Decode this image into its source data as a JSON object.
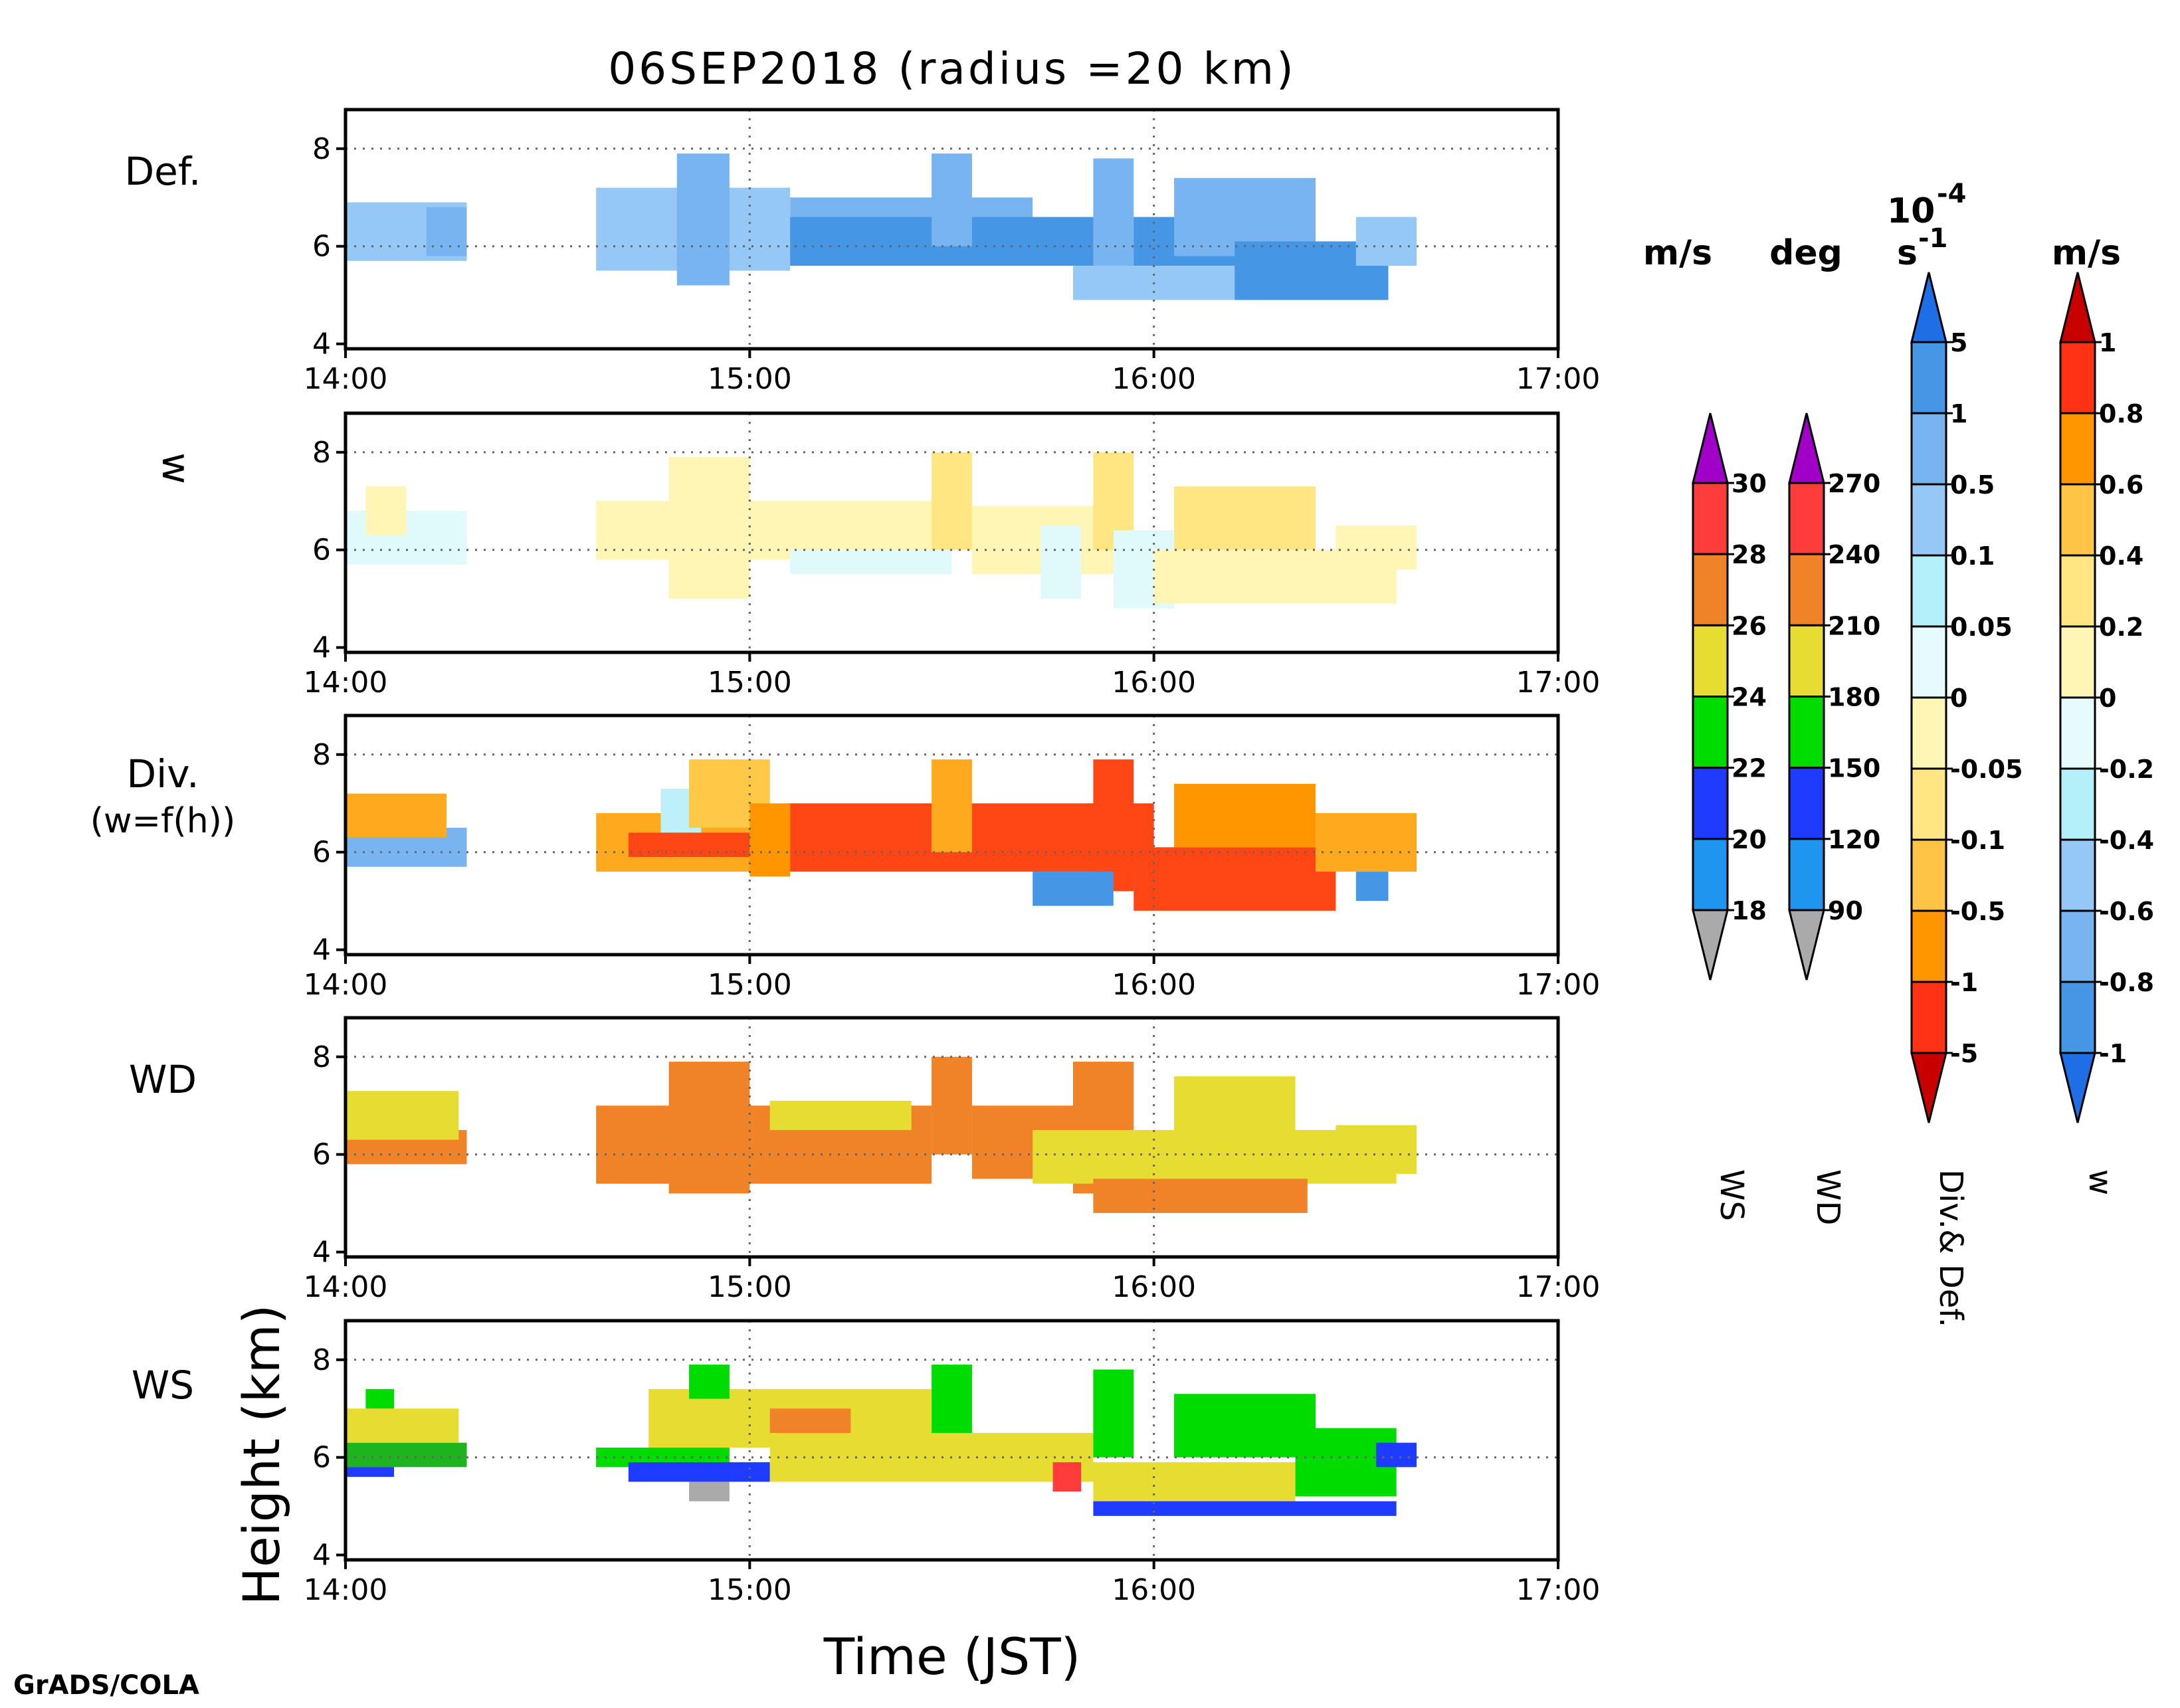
{
  "figure": {
    "title": "06SEP2018 (radius =20 km)",
    "xlabel": "Time (JST)",
    "ylabel": "Height (km)",
    "credit": "GrADS/COLA"
  },
  "chart_data": {
    "type": "heatmap",
    "x_ticks": [
      "14:00",
      "15:00",
      "16:00",
      "17:00"
    ],
    "x_range_hours": [
      14,
      17
    ],
    "y_ticks": [
      4,
      6,
      8
    ],
    "y_range_km": [
      3.9,
      8.8
    ],
    "grid": "dotted at 15:00, 16:00 and 6, 8 km",
    "panels": [
      {
        "label": "Def.",
        "scale": "divdef",
        "blocks": [
          {
            "t0": 14.0,
            "t1": 14.3,
            "z0": 5.7,
            "z1": 6.9,
            "color": "#96c8f5"
          },
          {
            "t0": 14.2,
            "t1": 14.3,
            "z0": 5.8,
            "z1": 6.8,
            "color": "#78b4f0"
          },
          {
            "t0": 14.62,
            "t1": 15.1,
            "z0": 5.5,
            "z1": 7.2,
            "color": "#96c8f5"
          },
          {
            "t0": 14.82,
            "t1": 14.95,
            "z0": 5.2,
            "z1": 7.9,
            "color": "#78b4f0"
          },
          {
            "t0": 15.1,
            "t1": 15.7,
            "z0": 5.8,
            "z1": 7.0,
            "color": "#78b4f0"
          },
          {
            "t0": 15.1,
            "t1": 16.3,
            "z0": 5.6,
            "z1": 6.6,
            "color": "#4696e6"
          },
          {
            "t0": 15.45,
            "t1": 15.55,
            "z0": 6.0,
            "z1": 7.9,
            "color": "#78b4f0"
          },
          {
            "t0": 15.85,
            "t1": 15.95,
            "z0": 5.5,
            "z1": 7.8,
            "color": "#78b4f0"
          },
          {
            "t0": 16.05,
            "t1": 16.4,
            "z0": 5.8,
            "z1": 7.4,
            "color": "#78b4f0"
          },
          {
            "t0": 15.8,
            "t1": 16.25,
            "z0": 4.9,
            "z1": 5.6,
            "color": "#96c8f5"
          },
          {
            "t0": 16.2,
            "t1": 16.58,
            "z0": 4.9,
            "z1": 6.1,
            "color": "#4696e6"
          },
          {
            "t0": 16.5,
            "t1": 16.65,
            "z0": 5.6,
            "z1": 6.6,
            "color": "#96c8f5"
          }
        ]
      },
      {
        "label": "w",
        "scale": "w",
        "blocks": [
          {
            "t0": 14.0,
            "t1": 14.3,
            "z0": 5.7,
            "z1": 6.8,
            "color": "#e0fafc"
          },
          {
            "t0": 14.05,
            "t1": 14.15,
            "z0": 6.3,
            "z1": 7.3,
            "color": "#fff5b4"
          },
          {
            "t0": 14.62,
            "t1": 15.45,
            "z0": 5.8,
            "z1": 7.0,
            "color": "#fff5b4"
          },
          {
            "t0": 14.8,
            "t1": 15.0,
            "z0": 5.0,
            "z1": 7.9,
            "color": "#fff5b4"
          },
          {
            "t0": 15.1,
            "t1": 15.5,
            "z0": 5.5,
            "z1": 6.0,
            "color": "#e0fafc"
          },
          {
            "t0": 15.45,
            "t1": 15.55,
            "z0": 6.0,
            "z1": 8.0,
            "color": "#ffe682"
          },
          {
            "t0": 15.55,
            "t1": 15.9,
            "z0": 5.5,
            "z1": 6.9,
            "color": "#fff5b4"
          },
          {
            "t0": 15.72,
            "t1": 15.82,
            "z0": 5.0,
            "z1": 6.5,
            "color": "#e0fafc"
          },
          {
            "t0": 15.85,
            "t1": 15.95,
            "z0": 6.0,
            "z1": 8.0,
            "color": "#ffe682"
          },
          {
            "t0": 15.9,
            "t1": 16.05,
            "z0": 4.8,
            "z1": 6.4,
            "color": "#e0fafc"
          },
          {
            "t0": 16.05,
            "t1": 16.4,
            "z0": 6.0,
            "z1": 7.3,
            "color": "#ffe682"
          },
          {
            "t0": 16.0,
            "t1": 16.6,
            "z0": 4.9,
            "z1": 6.0,
            "color": "#fff5b4"
          },
          {
            "t0": 16.45,
            "t1": 16.65,
            "z0": 5.6,
            "z1": 6.5,
            "color": "#fff5b4"
          }
        ]
      },
      {
        "label": "Div.",
        "sublabel": "(w=f(h))",
        "scale": "divdef",
        "blocks": [
          {
            "t0": 14.0,
            "t1": 14.3,
            "z0": 5.7,
            "z1": 6.5,
            "color": "#78b4f0"
          },
          {
            "t0": 14.0,
            "t1": 14.25,
            "z0": 6.3,
            "z1": 7.2,
            "color": "#ffaa1e"
          },
          {
            "t0": 14.62,
            "t1": 15.1,
            "z0": 5.6,
            "z1": 6.8,
            "color": "#ffaa1e"
          },
          {
            "t0": 14.78,
            "t1": 14.88,
            "z0": 6.2,
            "z1": 7.3,
            "color": "#bef0fa"
          },
          {
            "t0": 14.85,
            "t1": 15.05,
            "z0": 6.5,
            "z1": 7.9,
            "color": "#ffc846"
          },
          {
            "t0": 14.7,
            "t1": 15.0,
            "z0": 5.9,
            "z1": 6.4,
            "color": "#ff4614"
          },
          {
            "t0": 15.0,
            "t1": 15.1,
            "z0": 5.5,
            "z1": 7.0,
            "color": "#ff9600"
          },
          {
            "t0": 15.1,
            "t1": 16.0,
            "z0": 5.6,
            "z1": 7.0,
            "color": "#ff4614"
          },
          {
            "t0": 15.45,
            "t1": 15.55,
            "z0": 6.0,
            "z1": 7.9,
            "color": "#ffaa1e"
          },
          {
            "t0": 15.85,
            "t1": 15.95,
            "z0": 5.2,
            "z1": 7.9,
            "color": "#ff4614"
          },
          {
            "t0": 15.7,
            "t1": 15.9,
            "z0": 4.9,
            "z1": 5.6,
            "color": "#4696e6"
          },
          {
            "t0": 15.95,
            "t1": 16.45,
            "z0": 4.8,
            "z1": 6.1,
            "color": "#ff4614"
          },
          {
            "t0": 16.05,
            "t1": 16.4,
            "z0": 6.1,
            "z1": 7.4,
            "color": "#ff9600"
          },
          {
            "t0": 16.4,
            "t1": 16.65,
            "z0": 5.6,
            "z1": 6.8,
            "color": "#ffaa1e"
          },
          {
            "t0": 16.5,
            "t1": 16.58,
            "z0": 5.0,
            "z1": 5.6,
            "color": "#4696e6"
          }
        ]
      },
      {
        "label": "WD",
        "scale": "ws_wd",
        "blocks": [
          {
            "t0": 14.0,
            "t1": 14.3,
            "z0": 5.8,
            "z1": 6.5,
            "color": "#f08228"
          },
          {
            "t0": 14.0,
            "t1": 14.28,
            "z0": 6.3,
            "z1": 7.3,
            "color": "#e6dc32"
          },
          {
            "t0": 14.62,
            "t1": 15.45,
            "z0": 5.4,
            "z1": 7.0,
            "color": "#f08228"
          },
          {
            "t0": 14.8,
            "t1": 15.0,
            "z0": 5.2,
            "z1": 7.9,
            "color": "#f08228"
          },
          {
            "t0": 15.05,
            "t1": 15.4,
            "z0": 6.5,
            "z1": 7.1,
            "color": "#e6dc32"
          },
          {
            "t0": 15.45,
            "t1": 15.55,
            "z0": 6.0,
            "z1": 8.0,
            "color": "#f08228"
          },
          {
            "t0": 15.55,
            "t1": 15.8,
            "z0": 5.5,
            "z1": 7.0,
            "color": "#f08228"
          },
          {
            "t0": 15.8,
            "t1": 15.95,
            "z0": 5.2,
            "z1": 7.9,
            "color": "#f08228"
          },
          {
            "t0": 15.7,
            "t1": 16.6,
            "z0": 5.4,
            "z1": 6.5,
            "color": "#e6dc32"
          },
          {
            "t0": 16.05,
            "t1": 16.35,
            "z0": 6.3,
            "z1": 7.6,
            "color": "#e6dc32"
          },
          {
            "t0": 15.85,
            "t1": 16.38,
            "z0": 4.8,
            "z1": 5.5,
            "color": "#f08228"
          },
          {
            "t0": 16.45,
            "t1": 16.65,
            "z0": 5.6,
            "z1": 6.6,
            "color": "#e6dc32"
          }
        ]
      },
      {
        "label": "WS",
        "scale": "ws_wd",
        "blocks": [
          {
            "t0": 14.0,
            "t1": 14.3,
            "z0": 5.8,
            "z1": 6.3,
            "color": "#1eb41e"
          },
          {
            "t0": 14.0,
            "t1": 14.28,
            "z0": 6.3,
            "z1": 7.0,
            "color": "#e6dc32"
          },
          {
            "t0": 14.05,
            "t1": 14.12,
            "z0": 7.0,
            "z1": 7.4,
            "color": "#00dc00"
          },
          {
            "t0": 14.0,
            "t1": 14.12,
            "z0": 5.6,
            "z1": 5.8,
            "color": "#1e3cff"
          },
          {
            "t0": 14.62,
            "t1": 14.95,
            "z0": 5.8,
            "z1": 6.2,
            "color": "#00dc00"
          },
          {
            "t0": 14.7,
            "t1": 15.05,
            "z0": 5.5,
            "z1": 5.9,
            "color": "#1e3cff"
          },
          {
            "t0": 14.85,
            "t1": 14.95,
            "z0": 5.1,
            "z1": 5.5,
            "color": "#aaaaaa"
          },
          {
            "t0": 14.75,
            "t1": 15.5,
            "z0": 6.2,
            "z1": 7.4,
            "color": "#e6dc32"
          },
          {
            "t0": 14.85,
            "t1": 14.95,
            "z0": 7.2,
            "z1": 7.9,
            "color": "#00dc00"
          },
          {
            "t0": 15.05,
            "t1": 15.25,
            "z0": 6.3,
            "z1": 7.0,
            "color": "#f08228"
          },
          {
            "t0": 15.05,
            "t1": 15.85,
            "z0": 5.5,
            "z1": 6.5,
            "color": "#e6dc32"
          },
          {
            "t0": 15.45,
            "t1": 15.55,
            "z0": 6.5,
            "z1": 7.9,
            "color": "#00dc00"
          },
          {
            "t0": 15.75,
            "t1": 15.82,
            "z0": 5.3,
            "z1": 5.9,
            "color": "#ff3c3c"
          },
          {
            "t0": 15.85,
            "t1": 16.35,
            "z0": 5.0,
            "z1": 5.9,
            "color": "#e6dc32"
          },
          {
            "t0": 15.85,
            "t1": 15.95,
            "z0": 6.0,
            "z1": 7.8,
            "color": "#00dc00"
          },
          {
            "t0": 16.05,
            "t1": 16.4,
            "z0": 6.0,
            "z1": 7.3,
            "color": "#00dc00"
          },
          {
            "t0": 16.35,
            "t1": 16.6,
            "z0": 5.2,
            "z1": 6.6,
            "color": "#00dc00"
          },
          {
            "t0": 15.85,
            "t1": 16.6,
            "z0": 4.8,
            "z1": 5.1,
            "color": "#1e3cff"
          },
          {
            "t0": 16.55,
            "t1": 16.65,
            "z0": 5.8,
            "z1": 6.3,
            "color": "#1e3cff"
          }
        ]
      }
    ],
    "colorbars": [
      {
        "name": "WS",
        "unit": "m/s",
        "labels": [
          "18",
          "20",
          "22",
          "24",
          "26",
          "28",
          "30"
        ],
        "colors": [
          "#aaaaaa",
          "#1e96f0",
          "#1e3cff",
          "#00dc00",
          "#e6dc32",
          "#f08228",
          "#ff3c3c",
          "#a000c8"
        ]
      },
      {
        "name": "WD",
        "unit": "deg",
        "labels": [
          "90",
          "120",
          "150",
          "180",
          "210",
          "240",
          "270"
        ],
        "colors": [
          "#aaaaaa",
          "#1e96f0",
          "#1e3cff",
          "#00dc00",
          "#e6dc32",
          "#f08228",
          "#ff3c3c",
          "#a000c8"
        ]
      },
      {
        "name": "Div.& Def.",
        "unit_top": "10 ",
        "unit_exp": "-4",
        "unit_bottom": "s",
        "unit_bottom_exp": "-1",
        "labels": [
          "-5",
          "-1",
          "-0.5",
          "-0.1",
          "-0.05",
          "0",
          "0.05",
          "0.1",
          "0.5",
          "1",
          "5"
        ],
        "colors": [
          "#c80000",
          "#ff3214",
          "#ff9600",
          "#ffc346",
          "#ffe682",
          "#fff5b4",
          "#e6fcfc",
          "#b4f0fa",
          "#96c8f5",
          "#78b4f0",
          "#4696e6",
          "#1e6ee6"
        ]
      },
      {
        "name": "w",
        "unit": "m/s",
        "labels": [
          "-1",
          "-0.8",
          "-0.6",
          "-0.4",
          "-0.2",
          "0",
          "0.2",
          "0.4",
          "0.6",
          "0.8",
          "1"
        ],
        "colors": [
          "#1e6ee6",
          "#4696e6",
          "#78b4f0",
          "#96c8f5",
          "#b4f0fa",
          "#e6fcfc",
          "#fff5b4",
          "#ffe682",
          "#ffc346",
          "#ff9600",
          "#ff3214",
          "#c80000"
        ]
      }
    ]
  }
}
